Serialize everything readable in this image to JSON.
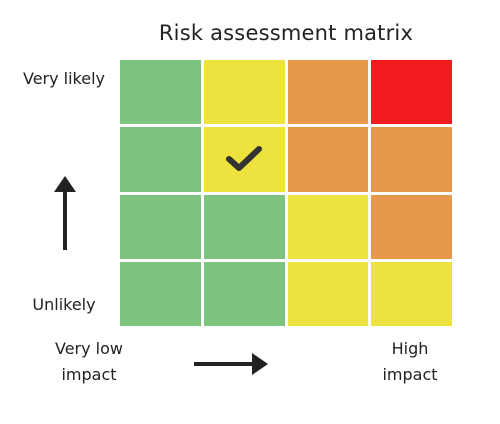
{
  "title": "Risk assessment matrix",
  "y_axis": {
    "top_label": "Very likely",
    "bottom_label": "Unlikely",
    "arrow_icon": "arrow-up-icon"
  },
  "x_axis": {
    "left_label_line1": "Very low",
    "left_label_line2": "impact",
    "right_label_line1": "High",
    "right_label_line2": "impact",
    "arrow_icon": "arrow-right-icon"
  },
  "colors": {
    "green": "#7dc57e",
    "yellow": "#eee23e",
    "orange": "#e8984a",
    "red": "#f21b1f",
    "check": "#333333"
  },
  "matrix": {
    "rows": [
      [
        "green",
        "yellow",
        "orange",
        "red"
      ],
      [
        "green",
        "yellow",
        "orange",
        "orange"
      ],
      [
        "green",
        "green",
        "yellow",
        "orange"
      ],
      [
        "green",
        "green",
        "yellow",
        "yellow"
      ]
    ],
    "marked_cell": {
      "row": 2,
      "column": 2,
      "icon": "checkmark-icon"
    }
  }
}
